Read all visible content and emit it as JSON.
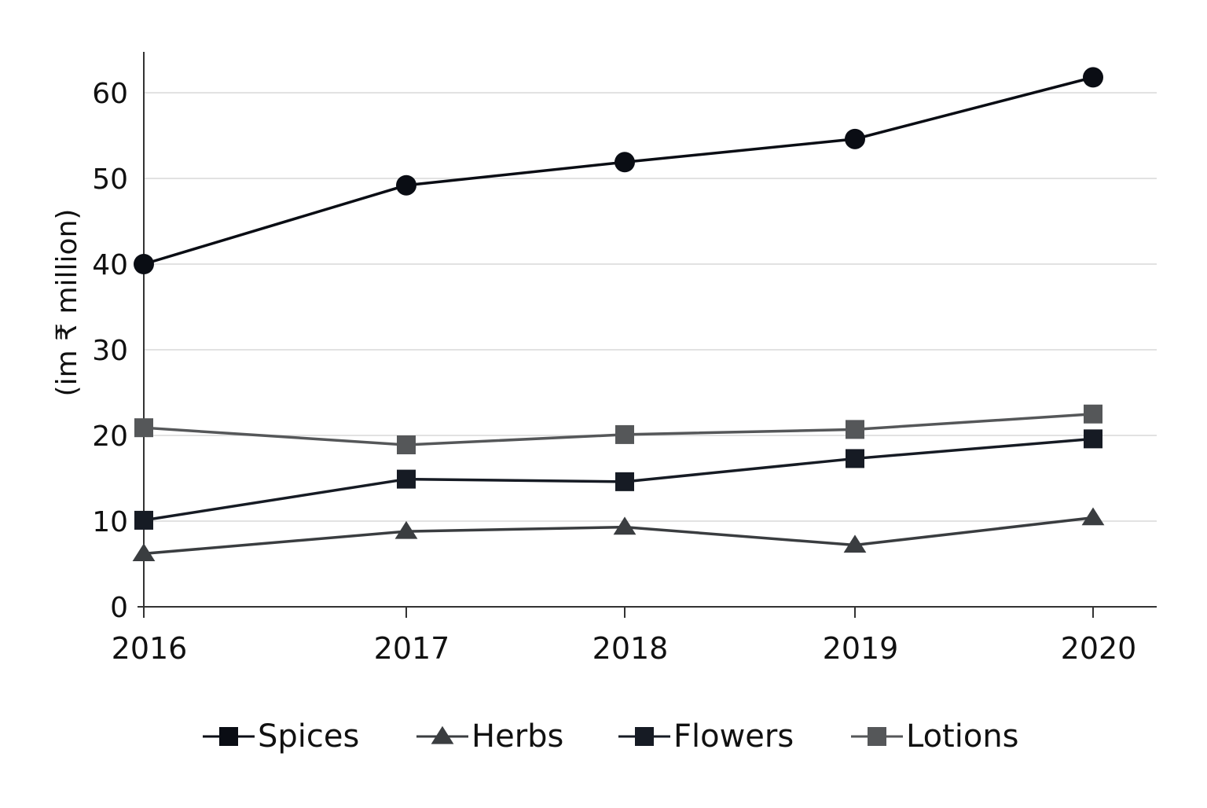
{
  "chart_data": {
    "type": "line",
    "title": "",
    "xlabel": "",
    "ylabel": "(im ₹ million)",
    "x": [
      "2016",
      "2017",
      "2018",
      "2019",
      "2020"
    ],
    "yticks": [
      "0",
      "10",
      "20",
      "30",
      "40",
      "50",
      "60"
    ],
    "ylim": [
      0,
      65
    ],
    "grid": "horizontal",
    "legend_position": "bottom",
    "series": [
      {
        "name": "Spices",
        "marker": "circle",
        "legend_marker": "square",
        "color": "#0a0d14",
        "values": [
          40,
          49.2,
          51.9,
          54.6,
          61.8
        ]
      },
      {
        "name": "Herbs",
        "marker": "triangle",
        "legend_marker": "triangle",
        "color": "#3a3d40",
        "values": [
          6.2,
          8.8,
          9.3,
          7.2,
          10.4
        ]
      },
      {
        "name": "Flowers",
        "marker": "square",
        "legend_marker": "square",
        "color": "#161b24",
        "values": [
          10.1,
          14.9,
          14.6,
          17.3,
          19.6
        ]
      },
      {
        "name": "Lotions",
        "marker": "square",
        "legend_marker": "square",
        "color": "#555759",
        "values": [
          20.9,
          18.9,
          20.1,
          20.7,
          22.5
        ]
      }
    ]
  }
}
